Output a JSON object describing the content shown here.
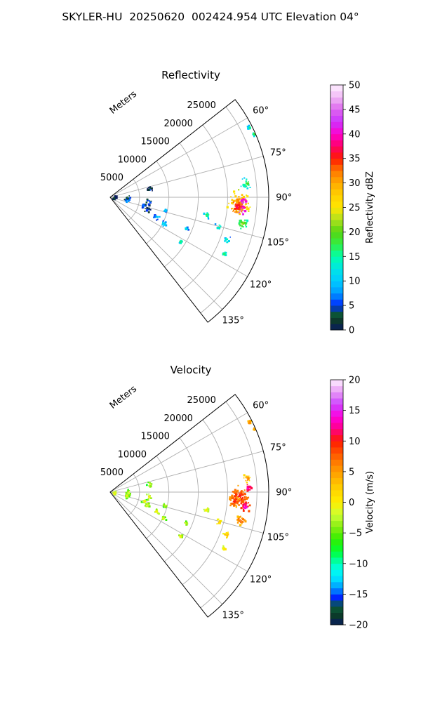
{
  "suptitle": "SKYLER-HU  20250620  002424.954 UTC Elevation 04°",
  "chart_data": [
    {
      "type": "heatmap",
      "projection": "polar-sector",
      "title": "Reflectivity",
      "range_label": "Meters",
      "range_ticks": [
        5000,
        10000,
        15000,
        20000,
        25000
      ],
      "range_tick_labels": [
        "5000",
        "10000",
        "15000",
        "20000",
        "25000"
      ],
      "range_max": 27000,
      "azimuth_ticks": [
        60,
        75,
        90,
        105,
        120,
        135
      ],
      "azimuth_tick_labels": [
        "60°",
        "75°",
        "90°",
        "105°",
        "120°",
        "135°"
      ],
      "azimuth_range": [
        52,
        142
      ],
      "grid": true,
      "colorbar": {
        "label": "Reflectivity dBZ",
        "vmin": 0,
        "vmax": 50,
        "ticks": [
          0,
          5,
          10,
          15,
          20,
          25,
          30,
          35,
          40,
          45,
          50
        ],
        "tick_labels": [
          "0",
          "5",
          "10",
          "15",
          "20",
          "25",
          "30",
          "35",
          "40",
          "45",
          "50"
        ],
        "stops": [
          {
            "v": 0,
            "c": "#081a5e"
          },
          {
            "v": 2,
            "c": "#0d3a2a"
          },
          {
            "v": 3.5,
            "c": "#0b5b38"
          },
          {
            "v": 5,
            "c": "#0026ff"
          },
          {
            "v": 7.5,
            "c": "#0099ff"
          },
          {
            "v": 10,
            "c": "#00ccff"
          },
          {
            "v": 12.5,
            "c": "#00e5e5"
          },
          {
            "v": 15,
            "c": "#00ffaa"
          },
          {
            "v": 17.5,
            "c": "#33ee44"
          },
          {
            "v": 20,
            "c": "#55d611"
          },
          {
            "v": 22.5,
            "c": "#aee01e"
          },
          {
            "v": 25,
            "c": "#ffe600"
          },
          {
            "v": 27.5,
            "c": "#ffd000"
          },
          {
            "v": 30,
            "c": "#ffaa00"
          },
          {
            "v": 32.5,
            "c": "#ff7700"
          },
          {
            "v": 35,
            "c": "#ff1a00"
          },
          {
            "v": 37.5,
            "c": "#ff0066"
          },
          {
            "v": 40,
            "c": "#ff00cc"
          },
          {
            "v": 42.5,
            "c": "#cc33ff"
          },
          {
            "v": 45,
            "c": "#dd66ee"
          },
          {
            "v": 47.5,
            "c": "#f0b8f5"
          },
          {
            "v": 50,
            "c": "#fff0ff"
          }
        ]
      },
      "echoes": [
        {
          "az": 92,
          "r": 21800,
          "v": 33,
          "s": 2200
        },
        {
          "az": 92,
          "r": 22600,
          "v": 45,
          "s": 1000
        },
        {
          "az": 96,
          "r": 22200,
          "v": 48,
          "s": 900
        },
        {
          "az": 94,
          "r": 21500,
          "v": 38,
          "s": 1400
        },
        {
          "az": 101,
          "r": 22800,
          "v": 22,
          "s": 1200
        },
        {
          "az": 84,
          "r": 23300,
          "v": 19,
          "s": 1100
        },
        {
          "az": 63,
          "r": 26500,
          "v": 16,
          "s": 500
        },
        {
          "az": 66,
          "r": 26800,
          "v": 21,
          "s": 400
        },
        {
          "az": 100,
          "r": 16500,
          "v": 18,
          "s": 700
        },
        {
          "az": 105,
          "r": 19000,
          "v": 17,
          "s": 800
        },
        {
          "az": 110,
          "r": 21000,
          "v": 16,
          "s": 800
        },
        {
          "az": 116,
          "r": 21500,
          "v": 18,
          "s": 500
        },
        {
          "az": 92,
          "r": 3000,
          "v": 8,
          "s": 700
        },
        {
          "az": 88,
          "r": 600,
          "v": 5,
          "s": 500
        },
        {
          "az": 100,
          "r": 2800,
          "v": 11,
          "s": 500
        },
        {
          "az": 78,
          "r": 6800,
          "v": 6,
          "s": 600
        },
        {
          "az": 96,
          "r": 6500,
          "v": 9,
          "s": 700
        },
        {
          "az": 104,
          "r": 5800,
          "v": 10,
          "s": 600
        },
        {
          "az": 108,
          "r": 6500,
          "v": 6,
          "s": 800
        },
        {
          "az": 112,
          "r": 8500,
          "v": 13,
          "s": 700
        },
        {
          "az": 116,
          "r": 10000,
          "v": 14,
          "s": 600
        },
        {
          "az": 103,
          "r": 9500,
          "v": 12,
          "s": 500
        },
        {
          "az": 112,
          "r": 13800,
          "v": 14,
          "s": 400
        },
        {
          "az": 122,
          "r": 14000,
          "v": 18,
          "s": 400
        }
      ]
    },
    {
      "type": "heatmap",
      "projection": "polar-sector",
      "title": "Velocity",
      "range_label": "Meters",
      "range_ticks": [
        5000,
        10000,
        15000,
        20000,
        25000
      ],
      "range_tick_labels": [
        "5000",
        "10000",
        "15000",
        "20000",
        "25000"
      ],
      "range_max": 27000,
      "azimuth_ticks": [
        60,
        75,
        90,
        105,
        120,
        135
      ],
      "azimuth_tick_labels": [
        "60°",
        "75°",
        "90°",
        "105°",
        "120°",
        "135°"
      ],
      "azimuth_range": [
        52,
        142
      ],
      "grid": true,
      "colorbar": {
        "label": "Velocity (m/s)",
        "vmin": -20,
        "vmax": 20,
        "ticks": [
          -20,
          -15,
          -10,
          -5,
          0,
          5,
          10,
          15,
          20
        ],
        "tick_labels": [
          "−20",
          "−15",
          "−10",
          "−5",
          "0",
          "5",
          "10",
          "15",
          "20"
        ],
        "stops": [
          {
            "v": -20,
            "c": "#081a5e"
          },
          {
            "v": -18.5,
            "c": "#0b3a2a"
          },
          {
            "v": -17,
            "c": "#0b5b38"
          },
          {
            "v": -15.5,
            "c": "#0026ff"
          },
          {
            "v": -14,
            "c": "#0099ff"
          },
          {
            "v": -12.5,
            "c": "#00ddff"
          },
          {
            "v": -11,
            "c": "#00ffee"
          },
          {
            "v": -9.5,
            "c": "#00ff99"
          },
          {
            "v": -8,
            "c": "#00ff33"
          },
          {
            "v": -6,
            "c": "#33ee00"
          },
          {
            "v": -4,
            "c": "#88ee11"
          },
          {
            "v": -2,
            "c": "#ccff33"
          },
          {
            "v": 0,
            "c": "#ffee00"
          },
          {
            "v": 2,
            "c": "#ffd500"
          },
          {
            "v": 4,
            "c": "#ffb000"
          },
          {
            "v": 6,
            "c": "#ff8800"
          },
          {
            "v": 8,
            "c": "#ff5500"
          },
          {
            "v": 10,
            "c": "#ff1a00"
          },
          {
            "v": 12,
            "c": "#ff0088"
          },
          {
            "v": 14,
            "c": "#ff00dd"
          },
          {
            "v": 16,
            "c": "#cc44ff"
          },
          {
            "v": 18,
            "c": "#e899f5"
          },
          {
            "v": 20,
            "c": "#fff0ff"
          }
        ]
      },
      "echoes": [
        {
          "az": 92,
          "r": 21800,
          "v": 11,
          "s": 2100
        },
        {
          "az": 96,
          "r": 23000,
          "v": 14,
          "s": 1200
        },
        {
          "az": 88,
          "r": 23500,
          "v": 15,
          "s": 900
        },
        {
          "az": 94,
          "r": 21000,
          "v": 10,
          "s": 1300
        },
        {
          "az": 102,
          "r": 22600,
          "v": 9,
          "s": 1100
        },
        {
          "az": 84,
          "r": 23300,
          "v": 7,
          "s": 900
        },
        {
          "az": 63,
          "r": 26500,
          "v": 7,
          "s": 500
        },
        {
          "az": 66,
          "r": 26800,
          "v": 7,
          "s": 400
        },
        {
          "az": 100,
          "r": 16500,
          "v": 1,
          "s": 700
        },
        {
          "az": 105,
          "r": 19000,
          "v": 4,
          "s": 800
        },
        {
          "az": 110,
          "r": 21000,
          "v": 5,
          "s": 800
        },
        {
          "az": 116,
          "r": 21500,
          "v": 3,
          "s": 500
        },
        {
          "az": 92,
          "r": 3000,
          "v": 0,
          "s": 700
        },
        {
          "az": 88,
          "r": 600,
          "v": 1,
          "s": 500
        },
        {
          "az": 100,
          "r": 2800,
          "v": 0,
          "s": 500
        },
        {
          "az": 78,
          "r": 6800,
          "v": 0,
          "s": 600
        },
        {
          "az": 96,
          "r": 6500,
          "v": 1,
          "s": 700
        },
        {
          "az": 104,
          "r": 5800,
          "v": 0,
          "s": 600
        },
        {
          "az": 108,
          "r": 6500,
          "v": 0,
          "s": 800
        },
        {
          "az": 112,
          "r": 8500,
          "v": 1,
          "s": 700
        },
        {
          "az": 116,
          "r": 10000,
          "v": 0,
          "s": 600
        },
        {
          "az": 103,
          "r": 9500,
          "v": 0,
          "s": 500
        },
        {
          "az": 112,
          "r": 13800,
          "v": 0,
          "s": 400
        },
        {
          "az": 122,
          "r": 14000,
          "v": 2,
          "s": 400
        }
      ]
    }
  ]
}
